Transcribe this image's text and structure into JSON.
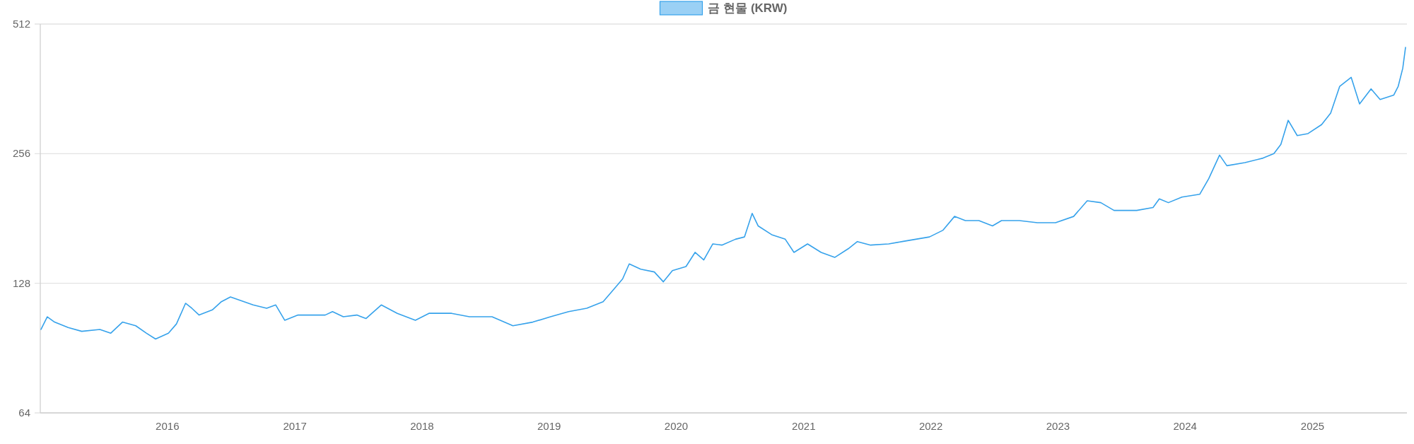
{
  "chart_data": {
    "type": "line",
    "legend": "top",
    "grid": "y",
    "log": true,
    "x": [
      "2015-01-03",
      "2015-01-21",
      "2015-02-11",
      "2015-03-22",
      "2015-04-30",
      "2015-06-21",
      "2015-07-22",
      "2015-08-25",
      "2015-10-02",
      "2015-11-02",
      "2015-11-28",
      "2016-01-04",
      "2016-01-27",
      "2016-02-22",
      "2016-03-11",
      "2016-04-01",
      "2016-05-09",
      "2016-06-04",
      "2016-06-30",
      "2016-07-26",
      "2016-09-03",
      "2016-10-12",
      "2016-11-07",
      "2016-12-03",
      "2017-01-10",
      "2017-03-29",
      "2017-04-19",
      "2017-05-20",
      "2017-06-28",
      "2017-07-24",
      "2017-09-06",
      "2017-10-22",
      "2017-12-13",
      "2018-01-21",
      "2018-03-27",
      "2018-05-17",
      "2018-07-21",
      "2018-09-19",
      "2018-11-15",
      "2019-01-05",
      "2019-02-26",
      "2019-04-19",
      "2019-06-05",
      "2019-07-06",
      "2019-07-31",
      "2019-08-19",
      "2019-09-21",
      "2019-10-30",
      "2019-11-25",
      "2019-12-21",
      "2020-01-29",
      "2020-02-24",
      "2020-03-20",
      "2020-04-15",
      "2020-05-11",
      "2020-06-19",
      "2020-07-15",
      "2020-08-06",
      "2020-08-23",
      "2020-10-01",
      "2020-11-09",
      "2020-12-04",
      "2021-01-12",
      "2021-02-20",
      "2021-03-31",
      "2021-05-09",
      "2021-06-04",
      "2021-07-12",
      "2021-09-02",
      "2021-10-11",
      "2021-11-19",
      "2021-12-28",
      "2022-02-05",
      "2022-03-10",
      "2022-04-10",
      "2022-05-19",
      "2022-06-27",
      "2022-07-23",
      "2022-09-12",
      "2022-11-03",
      "2022-12-25",
      "2023-02-15",
      "2023-03-26",
      "2023-05-04",
      "2023-06-11",
      "2023-08-15",
      "2023-10-01",
      "2023-10-19",
      "2023-11-14",
      "2023-12-23",
      "2024-02-12",
      "2024-03-09",
      "2024-04-09",
      "2024-04-30",
      "2024-06-21",
      "2024-08-12",
      "2024-09-12",
      "2024-10-02",
      "2024-10-23",
      "2024-11-18",
      "2024-12-19",
      "2025-01-27",
      "2025-02-22",
      "2025-03-20",
      "2025-04-22",
      "2025-05-16",
      "2025-06-18",
      "2025-07-14",
      "2025-08-22",
      "2025-09-04",
      "2025-09-17",
      "2025-09-25"
    ],
    "series": [
      {
        "name": "금 현물 (KRW)",
        "color": "#36a2eb",
        "values": [
          100,
          107,
          104,
          101,
          99,
          100,
          98,
          104,
          102,
          98,
          95,
          98,
          103,
          115,
          112,
          108,
          111,
          116,
          119,
          117,
          114,
          112,
          114,
          105,
          108,
          108,
          110,
          107,
          108,
          106,
          114,
          109,
          105,
          109,
          109,
          107,
          107,
          102,
          104,
          107,
          110,
          112,
          116,
          124,
          131,
          142,
          138,
          136,
          129,
          137,
          140,
          151,
          145,
          158,
          157,
          162,
          164,
          186,
          174,
          166,
          162,
          151,
          158,
          151,
          147,
          154,
          160,
          157,
          158,
          160,
          162,
          164,
          170,
          183,
          179,
          179,
          174,
          179,
          179,
          177,
          177,
          183,
          199,
          197,
          189,
          189,
          192,
          201,
          197,
          203,
          206,
          224,
          254,
          240,
          244,
          250,
          256,
          269,
          306,
          282,
          285,
          299,
          318,
          367,
          385,
          334,
          362,
          342,
          350,
          367,
          404,
          452
        ]
      }
    ],
    "xlim": [
      "2015-01-01",
      "2025-09-29"
    ],
    "xticks": [
      "2016",
      "2017",
      "2018",
      "2019",
      "2020",
      "2021",
      "2022",
      "2023",
      "2024",
      "2025"
    ],
    "ylim": [
      64,
      512
    ],
    "yticks": [
      64,
      128,
      256,
      512
    ]
  }
}
